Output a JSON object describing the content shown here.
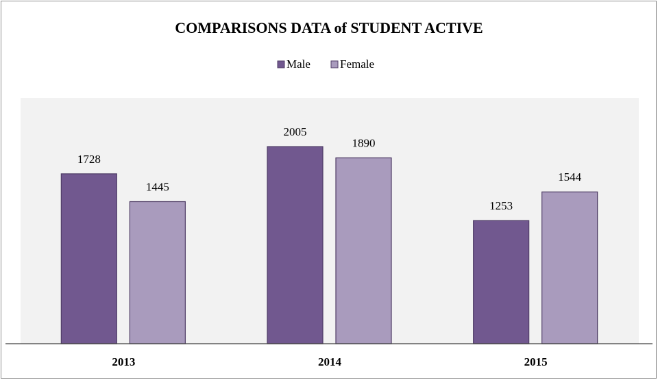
{
  "chart_data": {
    "type": "bar",
    "title": "COMPARISONS DATA of STUDENT ACTIVE",
    "categories": [
      "2013",
      "2014",
      "2015"
    ],
    "series": [
      {
        "name": "Male",
        "color": "#71588f",
        "values": [
          1728,
          2005,
          1253
        ]
      },
      {
        "name": "Female",
        "color": "#a99bbd",
        "values": [
          1445,
          1890,
          1544
        ]
      }
    ],
    "ylim": [
      0,
      2500
    ],
    "legend": "top"
  }
}
